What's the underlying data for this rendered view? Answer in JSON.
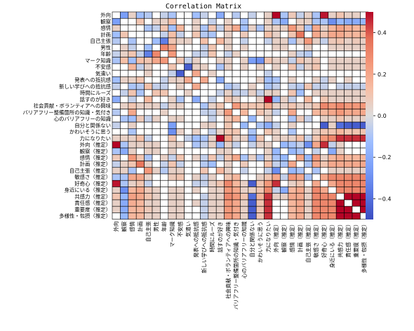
{
  "chart_data": {
    "type": "heatmap",
    "title": "Correlation Matrix",
    "labels": [
      "外向",
      "観察",
      "感情",
      "計画",
      "自己主張",
      "男性",
      "年齢",
      "マーク知識",
      "不安感",
      "気遣い",
      "発表への抵抗感",
      "新しい学びへの抵抗感",
      "時間にルーズ",
      "話すのが好き",
      "社会貢献・ボランティアへの興味",
      "バリアフリー整備箇所の知識・気付き",
      "心のバリアフリーの知識",
      "自分と関係ない",
      "かわいそうに思う",
      "力になりたい",
      "外向（推定）",
      "観察（推定）",
      "感情（推定）",
      "計画（推定）",
      "自己主張（推定）",
      "敏感さ（推定）",
      "好奇心（推定）",
      "身近にいる（推定）",
      "共感力（推定）",
      "責任感（推定）",
      "重要度（推定）",
      "多様性・包摂（推定）"
    ],
    "value_range": [
      -0.5,
      0.5
    ],
    "colorbar_ticks": [
      0.4,
      0.2,
      0.0,
      -0.2,
      -0.4
    ],
    "colorbar_tick_labels": [
      "0.4",
      "0.2",
      "0.0",
      "−0.2",
      "−0.4"
    ],
    "colormap": "coolwarm",
    "colors": {
      "low": "#3b4cc0",
      "mid": "#dddddd",
      "high": "#b40426"
    },
    "values": [
      [
        0,
        -0.25,
        0.05,
        -0.12,
        -0.08,
        0.02,
        -0.05,
        -0.1,
        0.03,
        0,
        -0.12,
        -0.05,
        0.03,
        -0.2,
        0.02,
        -0.08,
        0,
        -0.05,
        0.02,
        0.05,
        0.55,
        -0.1,
        0.08,
        -0.05,
        0.05,
        -0.1,
        0.48,
        0.05,
        0.1,
        0.05,
        0.05,
        0
      ],
      [
        -0.25,
        0,
        0.02,
        0.1,
        0.02,
        0.05,
        0.05,
        0.12,
        -0.02,
        0,
        0.05,
        0,
        -0.05,
        0.02,
        0.05,
        0,
        -0.1,
        0,
        0,
        0.05,
        -0.1,
        -0.2,
        0,
        0.05,
        0.05,
        -0.1,
        -0.1,
        -0.3,
        -0.15,
        -0.2,
        -0.2,
        -0.15
      ],
      [
        0.05,
        0.02,
        0,
        -0.02,
        -0.1,
        -0.05,
        0.1,
        -0.12,
        0.15,
        0,
        0.05,
        -0.1,
        0.1,
        -0.05,
        0.1,
        0.2,
        -0.12,
        0.05,
        -0.1,
        0.05,
        0.05,
        0.05,
        0.25,
        0.1,
        -0.1,
        0.2,
        0.05,
        0.15,
        0.22,
        0.18,
        0.15,
        0.15
      ],
      [
        -0.12,
        0.1,
        -0.02,
        0,
        0.02,
        0.02,
        -0.05,
        0.12,
        -0.05,
        0.02,
        0.1,
        -0.08,
        -0.1,
        0.02,
        0.05,
        0.02,
        0.08,
        0.02,
        0.02,
        0.12,
        0.05,
        0,
        0.1,
        0.35,
        0,
        0.2,
        0.1,
        0.2,
        0.2,
        0.15,
        0.15,
        0.15
      ],
      [
        -0.08,
        0.02,
        -0.1,
        0.02,
        0,
        -0.12,
        -0.35,
        0.1,
        0.05,
        0.05,
        0,
        0.12,
        -0.02,
        0.15,
        0.05,
        0.02,
        -0.05,
        0.02,
        0.02,
        -0.05,
        0.05,
        0.05,
        -0.1,
        0.05,
        0.25,
        0.05,
        -0.05,
        0.08,
        0.1,
        0.05,
        0.08,
        0.05
      ],
      [
        0.02,
        0.05,
        -0.05,
        0.02,
        -0.12,
        0,
        0.3,
        0.2,
        0.02,
        0,
        -0.02,
        -0.05,
        0.1,
        0,
        0.05,
        0,
        0.05,
        0.02,
        0,
        0,
        0.05,
        0.05,
        0,
        0,
        0.05,
        0,
        0.02,
        0.05,
        0.05,
        0.05,
        0.05,
        0.05
      ],
      [
        -0.05,
        0.05,
        0.1,
        -0.05,
        -0.35,
        0.3,
        0,
        0.25,
        0,
        0,
        -0.05,
        -0.05,
        0.1,
        0.02,
        -0.05,
        0.05,
        0.02,
        0,
        0,
        0,
        0.02,
        0.02,
        0.05,
        -0.05,
        -0.08,
        0,
        0.02,
        0,
        0,
        0,
        0,
        0
      ],
      [
        -0.1,
        0.12,
        -0.12,
        0.12,
        0.1,
        0.2,
        0.25,
        0,
        0.1,
        -0.05,
        0.05,
        0,
        0,
        0.05,
        0.05,
        0.02,
        0.05,
        -0.25,
        -0.3,
        0.1,
        0.05,
        0.05,
        -0.05,
        0.1,
        0.05,
        0.08,
        0,
        0.05,
        0.05,
        0.05,
        0.05,
        0.05
      ],
      [
        0.03,
        -0.02,
        0.15,
        -0.05,
        0.05,
        0.02,
        0,
        0.1,
        0,
        -0.45,
        0.05,
        0.05,
        0,
        -0.1,
        0.05,
        0.02,
        0.05,
        0.02,
        0.05,
        0,
        0.05,
        0,
        0.1,
        -0.05,
        0.05,
        0.1,
        0.02,
        0.05,
        0.05,
        0.05,
        0.05,
        0.05
      ],
      [
        0,
        0,
        0,
        0.02,
        0.05,
        0,
        0,
        -0.05,
        -0.45,
        0,
        0.2,
        0.02,
        0.05,
        0,
        0,
        0,
        0,
        0,
        0,
        -0.05,
        0,
        0,
        0,
        0,
        0,
        0,
        0,
        0,
        0,
        0,
        0,
        0
      ],
      [
        -0.12,
        0.05,
        0.05,
        0.1,
        0,
        -0.02,
        -0.05,
        0.05,
        0.05,
        0.2,
        0,
        0.2,
        0,
        -0.2,
        0,
        0,
        0.02,
        0,
        0.05,
        -0.12,
        -0.1,
        0,
        0.05,
        0.02,
        0,
        0.05,
        -0.05,
        0.05,
        0.02,
        0.05,
        0.02,
        0.02
      ],
      [
        -0.05,
        0,
        -0.1,
        -0.08,
        0.12,
        -0.05,
        -0.05,
        0,
        0.05,
        0.02,
        0.2,
        0,
        0.02,
        0,
        -0.1,
        -0.05,
        0,
        0.05,
        0,
        -0.1,
        -0.05,
        0,
        -0.05,
        -0.08,
        0.1,
        -0.05,
        -0.05,
        0,
        -0.05,
        -0.05,
        -0.05,
        -0.05
      ],
      [
        0.03,
        -0.05,
        0.1,
        -0.1,
        -0.02,
        0.1,
        0.1,
        0,
        0,
        0.05,
        0,
        0.02,
        0,
        -0.05,
        0.05,
        -0.05,
        -0.05,
        0.05,
        -0.05,
        0.05,
        0.05,
        0.02,
        0.1,
        -0.12,
        -0.02,
        0.05,
        0.05,
        0.05,
        0.05,
        0.05,
        0.05,
        0.05
      ],
      [
        -0.2,
        0.02,
        -0.05,
        0.02,
        0.15,
        0,
        0.02,
        0.05,
        -0.1,
        0,
        -0.2,
        0,
        -0.05,
        0,
        0.1,
        0.05,
        0.02,
        0,
        0.05,
        0.5,
        -0.15,
        0.05,
        -0.05,
        0,
        0.15,
        0,
        0.1,
        0.05,
        0.05,
        0.05,
        0.05,
        0.05
      ],
      [
        0.02,
        0.05,
        0.1,
        0.05,
        0.05,
        0.05,
        -0.05,
        0.05,
        0.05,
        0,
        0,
        -0.1,
        0.05,
        0.1,
        0,
        0.25,
        0.1,
        0.1,
        0.1,
        0.2,
        0.05,
        0.05,
        0.1,
        0.05,
        0.05,
        0.1,
        0.3,
        0.25,
        0.3,
        0.25,
        0.25,
        0.25
      ],
      [
        -0.08,
        0,
        0.2,
        0.02,
        0.02,
        0,
        0.05,
        0.02,
        0.02,
        0,
        0,
        -0.05,
        -0.05,
        0.05,
        0.25,
        0,
        0.15,
        0,
        0.1,
        0.05,
        -0.05,
        0,
        0.2,
        0.02,
        0.02,
        0.15,
        0.15,
        0.2,
        0.25,
        0.2,
        0.2,
        0.2
      ],
      [
        0,
        -0.1,
        -0.12,
        0.08,
        -0.05,
        0.05,
        0.02,
        0.05,
        0.05,
        0,
        0.02,
        0,
        -0.05,
        0.02,
        0.1,
        0.15,
        0,
        -0.15,
        0,
        0.05,
        0,
        0,
        -0.1,
        0.08,
        -0.05,
        0,
        0.05,
        0.05,
        0.1,
        0.05,
        0.05,
        0.05
      ],
      [
        -0.05,
        0,
        0.05,
        0.02,
        0.02,
        0.02,
        0,
        -0.25,
        0.02,
        0,
        0,
        0.05,
        0.05,
        0,
        0.1,
        0,
        -0.15,
        0,
        -0.1,
        -0.2,
        -0.05,
        0,
        0.05,
        0.02,
        0.02,
        0,
        -0.45,
        0.05,
        -0.4,
        -0.45,
        -0.45,
        -0.45
      ],
      [
        0.02,
        0,
        -0.1,
        0.02,
        0.02,
        0,
        0,
        -0.3,
        0.05,
        0,
        0.05,
        0,
        -0.05,
        0.05,
        0.1,
        0.1,
        0,
        -0.1,
        0,
        0.1,
        0.05,
        0,
        -0.1,
        0.02,
        0.02,
        0.05,
        0.1,
        0.1,
        0.15,
        0.1,
        0.1,
        0.1
      ],
      [
        0.05,
        0.05,
        0.05,
        0.12,
        -0.05,
        0,
        0,
        0.1,
        0,
        -0.05,
        -0.12,
        -0.1,
        0.05,
        0.5,
        0.2,
        0.05,
        0.05,
        -0.2,
        0.1,
        0,
        0.05,
        0.05,
        0.05,
        0.12,
        -0.05,
        0.1,
        0.25,
        0.3,
        0.45,
        0.45,
        0.45,
        0.45
      ],
      [
        0.55,
        -0.1,
        0.05,
        0.05,
        0.05,
        0.05,
        0.02,
        0.05,
        0.05,
        0,
        -0.1,
        -0.05,
        0.05,
        -0.15,
        0.05,
        -0.05,
        0,
        -0.05,
        0.05,
        0.05,
        0,
        -0.15,
        -0.1,
        -0.05,
        -0.3,
        0.2,
        0.45,
        -0.05,
        0.05,
        0.02,
        0.02,
        0.02
      ],
      [
        -0.1,
        -0.2,
        0.05,
        0,
        0.05,
        0.05,
        0.02,
        0.05,
        0,
        0,
        0,
        0,
        0.02,
        0.05,
        0.05,
        0,
        0,
        0,
        0,
        0.05,
        -0.15,
        0,
        -0.15,
        -0.1,
        0,
        -0.05,
        0.02,
        -0.2,
        0.05,
        0,
        0,
        0
      ],
      [
        0.08,
        0,
        0.25,
        0.1,
        -0.1,
        0,
        0.05,
        -0.05,
        0.1,
        0,
        0.05,
        -0.05,
        0.1,
        -0.05,
        0.1,
        0.2,
        -0.1,
        0.05,
        -0.1,
        0.05,
        -0.1,
        -0.15,
        0,
        0.2,
        -0.15,
        0.25,
        0.05,
        0.15,
        0.2,
        0.15,
        0.15,
        0.15
      ],
      [
        -0.05,
        0.05,
        0.1,
        0.35,
        0.05,
        0,
        -0.05,
        0.1,
        -0.05,
        0,
        0.02,
        -0.08,
        -0.12,
        0,
        0.05,
        0.02,
        0.08,
        0.02,
        0.02,
        0.12,
        -0.05,
        -0.1,
        0.2,
        0,
        -0.1,
        0.2,
        0.1,
        0.2,
        0.2,
        0.2,
        0.2,
        0.2
      ],
      [
        0.05,
        0.05,
        -0.1,
        0,
        0.25,
        0.05,
        -0.08,
        0.05,
        0.05,
        0,
        0,
        0.1,
        -0.02,
        0.15,
        0.05,
        0.02,
        -0.05,
        0.02,
        0.02,
        -0.05,
        -0.3,
        0,
        -0.15,
        -0.1,
        0,
        -0.1,
        0,
        0.05,
        0.05,
        0.05,
        0.05,
        0.05
      ],
      [
        -0.1,
        -0.1,
        0.2,
        0.2,
        0.05,
        0,
        0,
        0.08,
        0.1,
        0,
        0.05,
        -0.05,
        0.05,
        0,
        0.1,
        0.15,
        0,
        0,
        0.05,
        0.1,
        0.2,
        -0.05,
        0.25,
        0.2,
        -0.1,
        0,
        0.2,
        0.3,
        0.3,
        0.3,
        0.3,
        0.3
      ],
      [
        0.48,
        -0.1,
        0.05,
        0.1,
        -0.05,
        0.02,
        0.02,
        0,
        0.02,
        0,
        -0.05,
        -0.05,
        0.05,
        0.1,
        0.3,
        0.15,
        0.05,
        -0.45,
        0.1,
        0.25,
        0.45,
        0.02,
        0.05,
        0.1,
        0,
        0.2,
        0,
        0.2,
        0.3,
        0.3,
        0.3,
        0.3
      ],
      [
        0.05,
        -0.3,
        0.15,
        0.2,
        0.08,
        0.05,
        0,
        0.05,
        0.05,
        0,
        0.05,
        0,
        0.05,
        0.05,
        0.25,
        0.2,
        0.05,
        0.05,
        0.1,
        0.3,
        -0.05,
        -0.2,
        0.15,
        0.2,
        0.05,
        0.3,
        0.2,
        0,
        0.3,
        0.3,
        0.3,
        0.3
      ],
      [
        0.1,
        -0.15,
        0.22,
        0.2,
        0.1,
        0.05,
        0,
        0.05,
        0.05,
        0,
        0.02,
        -0.05,
        0.05,
        0.05,
        0.3,
        0.25,
        0.1,
        -0.4,
        0.15,
        0.45,
        0.05,
        0.05,
        0.2,
        0.2,
        0.05,
        0.3,
        0.3,
        0.3,
        0,
        0.5,
        0.5,
        0.5
      ],
      [
        0.05,
        -0.2,
        0.18,
        0.15,
        0.05,
        0.05,
        0,
        0.05,
        0.05,
        0,
        0.05,
        -0.05,
        0.05,
        0.05,
        0.25,
        0.2,
        0.05,
        -0.45,
        0.1,
        0.45,
        0.02,
        0,
        0.15,
        0.2,
        0.05,
        0.3,
        0.3,
        0.3,
        0.5,
        0,
        0.5,
        0.5
      ],
      [
        0.05,
        -0.2,
        0.15,
        0.15,
        0.08,
        0.05,
        0,
        0.05,
        0.05,
        0,
        0.02,
        -0.05,
        0.05,
        0.05,
        0.25,
        0.2,
        0.05,
        -0.45,
        0.1,
        0.45,
        0.02,
        0,
        0.15,
        0.2,
        0.05,
        0.3,
        0.3,
        0.3,
        0.5,
        0.5,
        0,
        0.5
      ],
      [
        0,
        -0.15,
        0.15,
        0.15,
        0.05,
        0.05,
        0,
        0.05,
        0.05,
        0,
        0.02,
        -0.05,
        0.05,
        0.05,
        0.25,
        0.2,
        0.05,
        -0.45,
        0.1,
        0.45,
        0.02,
        0,
        0.15,
        0.2,
        0.05,
        0.3,
        0.3,
        0.3,
        0.5,
        0.5,
        0.5,
        0
      ]
    ]
  }
}
